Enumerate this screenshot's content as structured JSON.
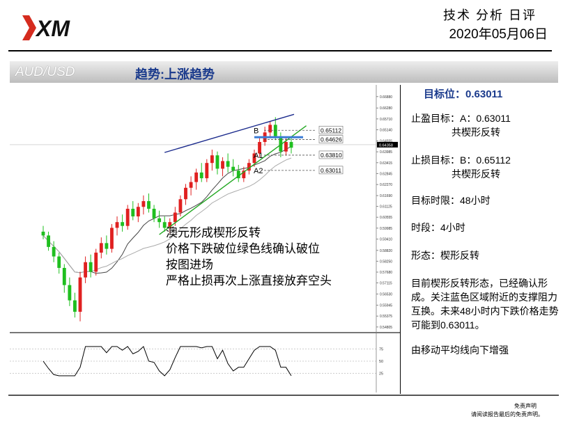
{
  "header": {
    "logo_text": "XM",
    "title": "技术 分析 日评",
    "date": "2020年05月06日"
  },
  "banner": {
    "pair": "AUD/USD",
    "trend": "趋势:上涨趋势"
  },
  "sidebar": {
    "target": "目标位：0.63011",
    "take_profit_line1": "止盈目标：A：0.63011",
    "take_profit_line2": "共楔形反转",
    "stop_loss_line1": "止损目标：B：0.65112",
    "stop_loss_line2": "共楔形反转",
    "time_limit": "目标时限：48小时",
    "timeframe": "时段：4小时",
    "pattern": "形态：楔形反转",
    "analysis": "目前楔形反转形态，已经确认形成。关注蓝色区域附近的支撑阻力互换。未来48小时内下跌价格走势可能到0.63011。",
    "ma_note": "由移动平均线向下增强"
  },
  "footer": {
    "disclaimer_title": "免责声明",
    "disclaimer_text": "请阅读报告最后的免责声明。"
  },
  "chart_data": {
    "type": "candlestick",
    "symbol": "AUD/USD",
    "timeframe": "4小时",
    "y_tick_labels": [
      "0.66880",
      "0.66280",
      "0.65710",
      "0.65140",
      "0.64555",
      "0.63985",
      "0.63415",
      "0.62845",
      "0.62270",
      "0.61690",
      "0.61125",
      "0.60555",
      "0.59985",
      "0.59410",
      "0.58820",
      "0.58250",
      "0.57680",
      "0.57115",
      "0.56530",
      "0.55945",
      "0.55375",
      "0.54805"
    ],
    "current_price_label": "0.64358",
    "levels": [
      {
        "name": "B",
        "value": "0.65112"
      },
      {
        "name": "",
        "value": "0.64626"
      },
      {
        "name": "A1",
        "value": "0.63810"
      },
      {
        "name": "A2",
        "value": "0.63011"
      }
    ],
    "annotation_lines": [
      "澳元形成楔形反转",
      "价格下跌破位绿色线确认破位",
      "按图进场",
      "严格止损再次上涨直接放弃空头"
    ],
    "oscillator_labels": [
      "75",
      "50",
      "25"
    ],
    "ylim": [
      0.548,
      0.672
    ],
    "candles": [
      [
        0.598,
        0.601,
        0.594,
        0.596
      ],
      [
        0.596,
        0.598,
        0.588,
        0.59
      ],
      [
        0.59,
        0.593,
        0.582,
        0.585
      ],
      [
        0.585,
        0.587,
        0.576,
        0.579
      ],
      [
        0.579,
        0.581,
        0.566,
        0.57
      ],
      [
        0.57,
        0.574,
        0.559,
        0.562
      ],
      [
        0.562,
        0.566,
        0.553,
        0.556
      ],
      [
        0.556,
        0.577,
        0.551,
        0.574
      ],
      [
        0.574,
        0.585,
        0.571,
        0.582
      ],
      [
        0.582,
        0.586,
        0.574,
        0.577
      ],
      [
        0.577,
        0.589,
        0.575,
        0.587
      ],
      [
        0.587,
        0.595,
        0.584,
        0.592
      ],
      [
        0.592,
        0.596,
        0.586,
        0.589
      ],
      [
        0.589,
        0.602,
        0.587,
        0.6
      ],
      [
        0.6,
        0.606,
        0.596,
        0.603
      ],
      [
        0.603,
        0.607,
        0.598,
        0.601
      ],
      [
        0.601,
        0.612,
        0.599,
        0.61
      ],
      [
        0.61,
        0.614,
        0.604,
        0.606
      ],
      [
        0.606,
        0.613,
        0.603,
        0.611
      ],
      [
        0.611,
        0.617,
        0.607,
        0.614
      ],
      [
        0.614,
        0.618,
        0.608,
        0.61
      ],
      [
        0.61,
        0.612,
        0.603,
        0.605
      ],
      [
        0.605,
        0.609,
        0.6,
        0.603
      ],
      [
        0.603,
        0.606,
        0.598,
        0.6
      ],
      [
        0.6,
        0.605,
        0.597,
        0.603
      ],
      [
        0.603,
        0.611,
        0.601,
        0.608
      ],
      [
        0.608,
        0.617,
        0.606,
        0.615
      ],
      [
        0.615,
        0.623,
        0.612,
        0.621
      ],
      [
        0.621,
        0.627,
        0.617,
        0.624
      ],
      [
        0.624,
        0.631,
        0.62,
        0.629
      ],
      [
        0.629,
        0.634,
        0.624,
        0.626
      ],
      [
        0.626,
        0.636,
        0.624,
        0.634
      ],
      [
        0.634,
        0.641,
        0.63,
        0.638
      ],
      [
        0.638,
        0.64,
        0.628,
        0.631
      ],
      [
        0.631,
        0.637,
        0.627,
        0.635
      ],
      [
        0.635,
        0.639,
        0.629,
        0.632
      ],
      [
        0.632,
        0.636,
        0.627,
        0.63
      ],
      [
        0.63,
        0.633,
        0.624,
        0.626
      ],
      [
        0.626,
        0.632,
        0.624,
        0.63
      ],
      [
        0.63,
        0.636,
        0.628,
        0.634
      ],
      [
        0.634,
        0.641,
        0.632,
        0.639
      ],
      [
        0.639,
        0.647,
        0.637,
        0.645
      ],
      [
        0.645,
        0.653,
        0.643,
        0.65
      ],
      [
        0.65,
        0.656,
        0.647,
        0.654
      ],
      [
        0.654,
        0.658,
        0.646,
        0.648
      ],
      [
        0.648,
        0.65,
        0.637,
        0.64
      ],
      [
        0.64,
        0.647,
        0.638,
        0.645
      ],
      [
        0.645,
        0.648,
        0.639,
        0.642
      ]
    ]
  }
}
